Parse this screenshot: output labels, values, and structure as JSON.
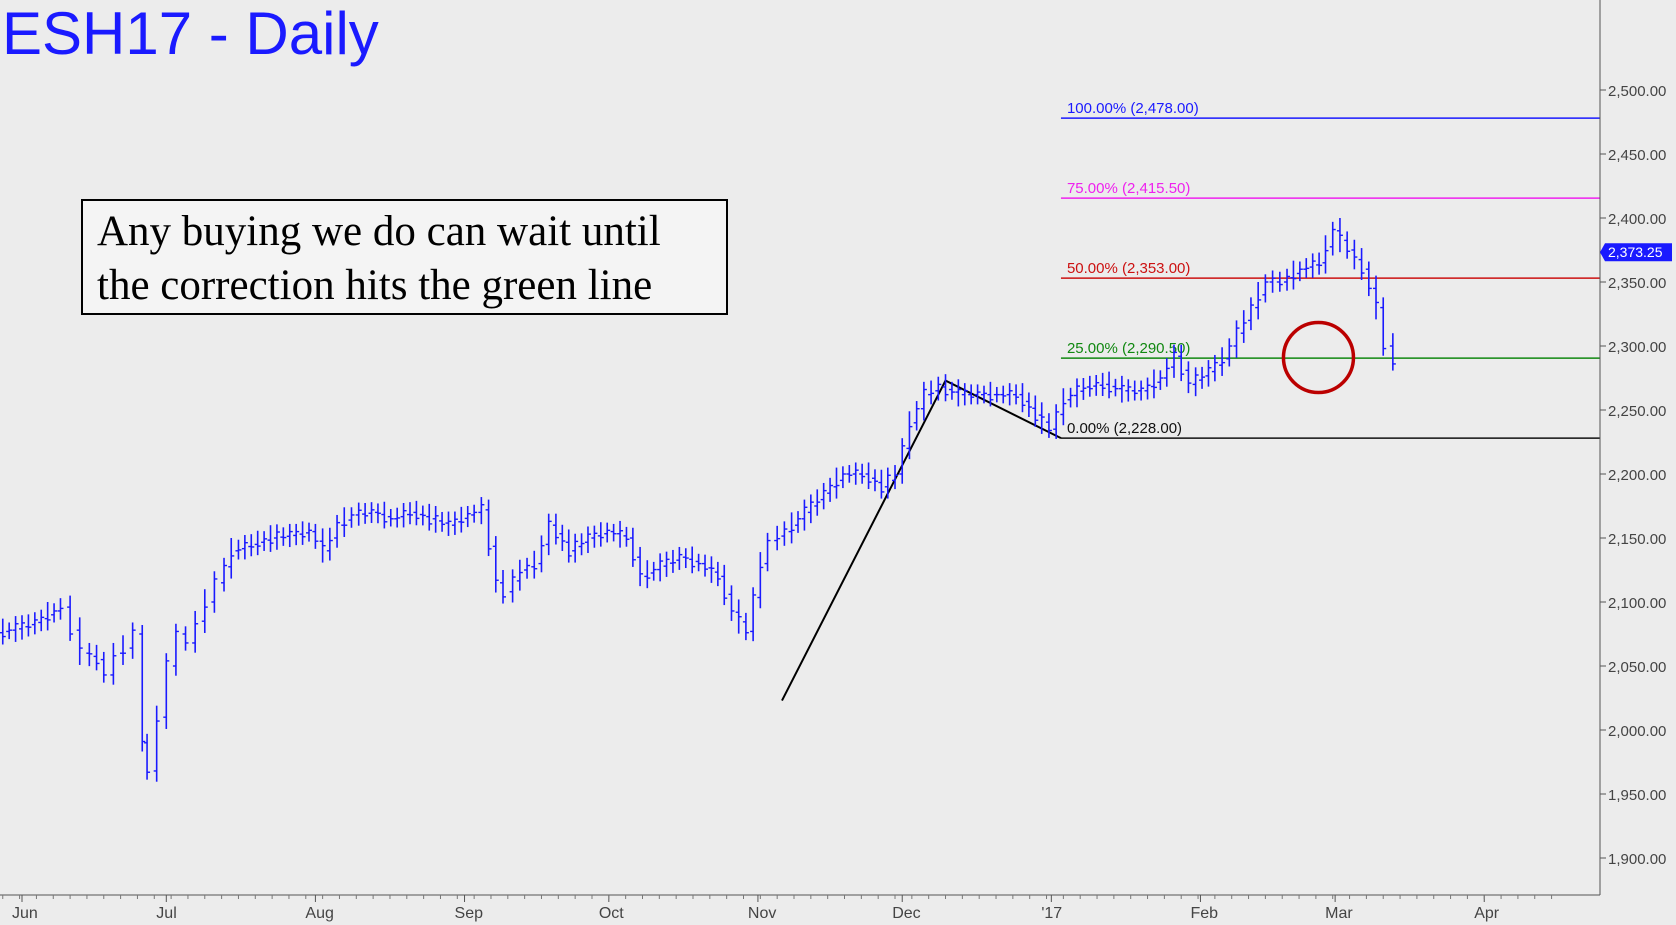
{
  "header": {
    "title": "ESH17 - Daily"
  },
  "annotation": {
    "line1": "Any buying we do can wait until",
    "line2": "the correction hits the green line"
  },
  "chart_data": {
    "type": "bar",
    "subtype": "ohlc",
    "title": "ESH17 - Daily",
    "ylim": [
      1860,
      2530
    ],
    "y_ticks": [
      1900,
      1950,
      2000,
      2050,
      2100,
      2150,
      2200,
      2250,
      2300,
      2350,
      2400,
      2450,
      2500
    ],
    "y_tick_labels": [
      "1,900.00",
      "1,950.00",
      "2,000.00",
      "2,050.00",
      "2,100.00",
      "2,150.00",
      "2,200.00",
      "2,250.00",
      "2,300.00",
      "2,350.00",
      "2,400.00",
      "2,450.00",
      "2,500.00"
    ],
    "x_months": [
      {
        "label": "Jun",
        "day": 0
      },
      {
        "label": "Jul",
        "day": 30
      },
      {
        "label": "Aug",
        "day": 61
      },
      {
        "label": "Sep",
        "day": 92
      },
      {
        "label": "Oct",
        "day": 122
      },
      {
        "label": "Nov",
        "day": 153
      },
      {
        "label": "Dec",
        "day": 183
      },
      {
        "label": "'17",
        "day": 214
      },
      {
        "label": "Feb",
        "day": 245
      },
      {
        "label": "Mar",
        "day": 273
      },
      {
        "label": "Apr",
        "day": 304
      }
    ],
    "current_price": {
      "value": 2373.25,
      "label": "2,373.25",
      "color": "#1a1aff"
    },
    "fib_levels": [
      {
        "label": "100.00% (2,478.00)",
        "value": 2478.0,
        "color": "#1a1aff"
      },
      {
        "label": "75.00% (2,415.50)",
        "value": 2415.5,
        "color": "#ee22ee"
      },
      {
        "label": "50.00% (2,353.00)",
        "value": 2353.0,
        "color": "#cc1111"
      },
      {
        "label": "25.00% (2,290.50)",
        "value": 2290.5,
        "color": "#118811"
      },
      {
        "label": "0.00% (2,228.00)",
        "value": 2228.0,
        "color": "#111111"
      }
    ],
    "fib_start_day": 216,
    "pattern_line": [
      {
        "day": 158,
        "price": 2023
      },
      {
        "day": 192,
        "price": 2273
      },
      {
        "day": 216,
        "price": 2228
      }
    ],
    "highlight_circle": {
      "day": 266,
      "price": 2291,
      "color": "#bb0000"
    },
    "series": [
      {
        "color": "#1a1aff",
        "points": [
          {
            "day": -4,
            "price": 2076
          },
          {
            "day": 0,
            "price": 2079
          },
          {
            "day": 4,
            "price": 2084
          },
          {
            "day": 8,
            "price": 2093
          },
          {
            "day": 10,
            "price": 2096
          },
          {
            "day": 12,
            "price": 2078
          },
          {
            "day": 14,
            "price": 2060
          },
          {
            "day": 17,
            "price": 2055
          },
          {
            "day": 19,
            "price": 2043
          },
          {
            "day": 21,
            "price": 2060
          },
          {
            "day": 23,
            "price": 2064
          },
          {
            "day": 25,
            "price": 2075
          },
          {
            "day": 26,
            "price": 1990
          },
          {
            "day": 28,
            "price": 1968
          },
          {
            "day": 30,
            "price": 2010
          },
          {
            "day": 32,
            "price": 2050
          },
          {
            "day": 34,
            "price": 2075
          },
          {
            "day": 36,
            "price": 2068
          },
          {
            "day": 38,
            "price": 2085
          },
          {
            "day": 40,
            "price": 2100
          },
          {
            "day": 42,
            "price": 2115
          },
          {
            "day": 45,
            "price": 2140
          },
          {
            "day": 49,
            "price": 2145
          },
          {
            "day": 53,
            "price": 2150
          },
          {
            "day": 57,
            "price": 2152
          },
          {
            "day": 61,
            "price": 2155
          },
          {
            "day": 64,
            "price": 2140
          },
          {
            "day": 67,
            "price": 2160
          },
          {
            "day": 70,
            "price": 2168
          },
          {
            "day": 74,
            "price": 2170
          },
          {
            "day": 78,
            "price": 2165
          },
          {
            "day": 82,
            "price": 2170
          },
          {
            "day": 86,
            "price": 2165
          },
          {
            "day": 90,
            "price": 2160
          },
          {
            "day": 94,
            "price": 2168
          },
          {
            "day": 97,
            "price": 2172
          },
          {
            "day": 100,
            "price": 2115
          },
          {
            "day": 102,
            "price": 2108
          },
          {
            "day": 105,
            "price": 2125
          },
          {
            "day": 108,
            "price": 2130
          },
          {
            "day": 111,
            "price": 2160
          },
          {
            "day": 115,
            "price": 2140
          },
          {
            "day": 119,
            "price": 2150
          },
          {
            "day": 123,
            "price": 2155
          },
          {
            "day": 127,
            "price": 2150
          },
          {
            "day": 130,
            "price": 2120
          },
          {
            "day": 134,
            "price": 2128
          },
          {
            "day": 138,
            "price": 2135
          },
          {
            "day": 142,
            "price": 2130
          },
          {
            "day": 146,
            "price": 2120
          },
          {
            "day": 149,
            "price": 2092
          },
          {
            "day": 152,
            "price": 2077
          },
          {
            "day": 155,
            "price": 2130
          },
          {
            "day": 157,
            "price": 2148
          },
          {
            "day": 160,
            "price": 2155
          },
          {
            "day": 164,
            "price": 2170
          },
          {
            "day": 168,
            "price": 2185
          },
          {
            "day": 172,
            "price": 2200
          },
          {
            "day": 176,
            "price": 2200
          },
          {
            "day": 180,
            "price": 2190
          },
          {
            "day": 183,
            "price": 2200
          },
          {
            "day": 186,
            "price": 2240
          },
          {
            "day": 189,
            "price": 2262
          },
          {
            "day": 192,
            "price": 2268
          },
          {
            "day": 196,
            "price": 2262
          },
          {
            "day": 200,
            "price": 2262
          },
          {
            "day": 204,
            "price": 2262
          },
          {
            "day": 208,
            "price": 2262
          },
          {
            "day": 212,
            "price": 2246
          },
          {
            "day": 215,
            "price": 2235
          },
          {
            "day": 218,
            "price": 2258
          },
          {
            "day": 222,
            "price": 2268
          },
          {
            "day": 226,
            "price": 2270
          },
          {
            "day": 230,
            "price": 2265
          },
          {
            "day": 234,
            "price": 2265
          },
          {
            "day": 238,
            "price": 2275
          },
          {
            "day": 241,
            "price": 2292
          },
          {
            "day": 244,
            "price": 2270
          },
          {
            "day": 248,
            "price": 2280
          },
          {
            "day": 251,
            "price": 2290
          },
          {
            "day": 254,
            "price": 2310
          },
          {
            "day": 257,
            "price": 2330
          },
          {
            "day": 260,
            "price": 2350
          },
          {
            "day": 263,
            "price": 2350
          },
          {
            "day": 267,
            "price": 2360
          },
          {
            "day": 271,
            "price": 2365
          },
          {
            "day": 274,
            "price": 2390
          },
          {
            "day": 277,
            "price": 2375
          },
          {
            "day": 280,
            "price": 2360
          },
          {
            "day": 283,
            "price": 2330
          },
          {
            "day": 285,
            "price": 2300
          },
          {
            "day": 287,
            "price": 2290
          }
        ]
      }
    ]
  }
}
